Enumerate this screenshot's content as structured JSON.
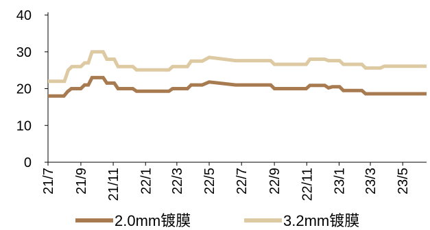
{
  "chart_data": {
    "type": "line",
    "title": "",
    "xlabel": "",
    "ylabel": "",
    "ylim": [
      0,
      40
    ],
    "yticks": [
      0,
      10,
      20,
      30,
      40
    ],
    "xticks": [
      "21/7",
      "21/9",
      "21/11",
      "22/1",
      "22/3",
      "22/5",
      "22/7",
      "22/9",
      "22/11",
      "23/1",
      "23/3",
      "23/5"
    ],
    "x_range": [
      "2021-07-01",
      "2023-06-15"
    ],
    "grid": false,
    "legend_position": "bottom",
    "series": [
      {
        "name": "2.0mm镀膜",
        "color": "#a87a50",
        "points": [
          [
            "2021-07-01",
            18
          ],
          [
            "2021-07-31",
            18
          ],
          [
            "2021-08-07",
            19.2
          ],
          [
            "2021-08-14",
            20
          ],
          [
            "2021-09-01",
            20
          ],
          [
            "2021-09-08",
            21
          ],
          [
            "2021-09-15",
            21
          ],
          [
            "2021-09-22",
            23
          ],
          [
            "2021-10-13",
            23
          ],
          [
            "2021-10-20",
            21.5
          ],
          [
            "2021-11-03",
            21.5
          ],
          [
            "2021-11-10",
            20
          ],
          [
            "2021-12-08",
            20
          ],
          [
            "2021-12-15",
            19.3
          ],
          [
            "2022-02-14",
            19.3
          ],
          [
            "2022-02-21",
            20
          ],
          [
            "2022-03-21",
            20
          ],
          [
            "2022-03-28",
            21
          ],
          [
            "2022-04-18",
            21
          ],
          [
            "2022-05-01",
            21.8
          ],
          [
            "2022-06-20",
            21
          ],
          [
            "2022-08-25",
            21
          ],
          [
            "2022-09-01",
            20
          ],
          [
            "2022-10-31",
            20
          ],
          [
            "2022-11-07",
            20.9
          ],
          [
            "2022-12-05",
            20.9
          ],
          [
            "2022-12-12",
            20.2
          ],
          [
            "2022-12-19",
            20.5
          ],
          [
            "2023-01-02",
            20.5
          ],
          [
            "2023-01-09",
            19.5
          ],
          [
            "2023-02-13",
            19.5
          ],
          [
            "2023-02-20",
            18.6
          ],
          [
            "2023-06-15",
            18.6
          ]
        ]
      },
      {
        "name": "3.2mm镀膜",
        "color": "#ddc9a2",
        "points": [
          [
            "2021-07-01",
            22
          ],
          [
            "2021-08-01",
            22
          ],
          [
            "2021-08-08",
            25
          ],
          [
            "2021-08-15",
            26
          ],
          [
            "2021-09-01",
            26
          ],
          [
            "2021-09-08",
            27
          ],
          [
            "2021-09-15",
            27
          ],
          [
            "2021-09-22",
            30
          ],
          [
            "2021-10-13",
            30
          ],
          [
            "2021-10-20",
            28
          ],
          [
            "2021-11-03",
            28
          ],
          [
            "2021-11-10",
            26
          ],
          [
            "2021-12-08",
            26
          ],
          [
            "2021-12-15",
            25.1
          ],
          [
            "2022-02-14",
            25.1
          ],
          [
            "2022-02-21",
            26
          ],
          [
            "2022-03-21",
            26
          ],
          [
            "2022-03-28",
            27.5
          ],
          [
            "2022-04-18",
            27.5
          ],
          [
            "2022-05-01",
            28.5
          ],
          [
            "2022-06-20",
            27.6
          ],
          [
            "2022-08-25",
            27.6
          ],
          [
            "2022-09-01",
            26.6
          ],
          [
            "2022-10-31",
            26.6
          ],
          [
            "2022-11-07",
            28
          ],
          [
            "2022-12-05",
            28
          ],
          [
            "2022-12-12",
            27.6
          ],
          [
            "2023-01-02",
            27.6
          ],
          [
            "2023-01-09",
            26.6
          ],
          [
            "2023-02-13",
            26.6
          ],
          [
            "2023-02-20",
            25.6
          ],
          [
            "2023-03-20",
            25.6
          ],
          [
            "2023-03-27",
            26.1
          ],
          [
            "2023-06-15",
            26.1
          ]
        ]
      }
    ]
  }
}
